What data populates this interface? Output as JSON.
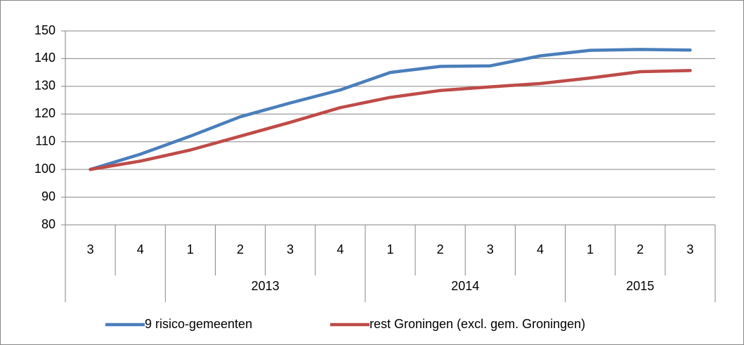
{
  "chart_data": {
    "type": "line",
    "categories": [
      "3",
      "4",
      "1",
      "2",
      "3",
      "4",
      "1",
      "2",
      "3",
      "4",
      "1",
      "2",
      "3"
    ],
    "years": [
      null,
      null,
      "2013",
      "2013",
      "2013",
      "2013",
      "2014",
      "2014",
      "2014",
      "2014",
      "2015",
      "2015",
      "2015"
    ],
    "series": [
      {
        "name": "9 risico-gemeenten",
        "color": "#4a7ebb",
        "values": [
          100,
          105.5,
          112,
          119,
          124,
          128.7,
          135,
          137.2,
          137.4,
          141,
          143,
          143.3,
          143.1
        ]
      },
      {
        "name": "rest Groningen (excl. gem. Groningen)",
        "color": "#be4b48",
        "values": [
          100,
          103,
          107,
          112,
          117,
          122.3,
          126,
          128.5,
          129.8,
          131,
          133,
          135.3,
          135.7
        ]
      }
    ],
    "ylim": [
      80,
      150
    ],
    "yticks": [
      80,
      90,
      100,
      110,
      120,
      130,
      140,
      150
    ],
    "grid": true,
    "legend": "bottom"
  }
}
